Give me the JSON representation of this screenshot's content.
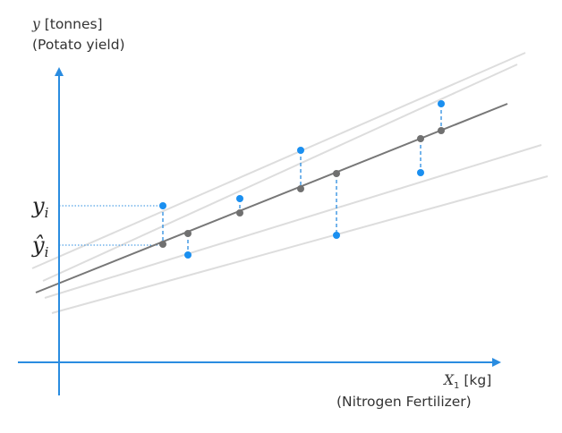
{
  "y_axis": {
    "var": "y",
    "unit": " [tonnes]",
    "description": "(Potato yield)"
  },
  "x_axis": {
    "var": "X",
    "sub": "1",
    "unit": " [kg]",
    "description": "(Nitrogen Fertilizer)"
  },
  "markers": {
    "yi": {
      "base": "y",
      "sub": "i"
    },
    "yhat_i": {
      "base": "ŷ",
      "sub": "i"
    }
  },
  "colors": {
    "axis": "#2a8ce0",
    "observed_point": "#1a8ff0",
    "fitted_line": "#777777",
    "fitted_point": "#707070",
    "candidate_lines": "#dddddd",
    "residual": "#2a8ce0"
  }
}
